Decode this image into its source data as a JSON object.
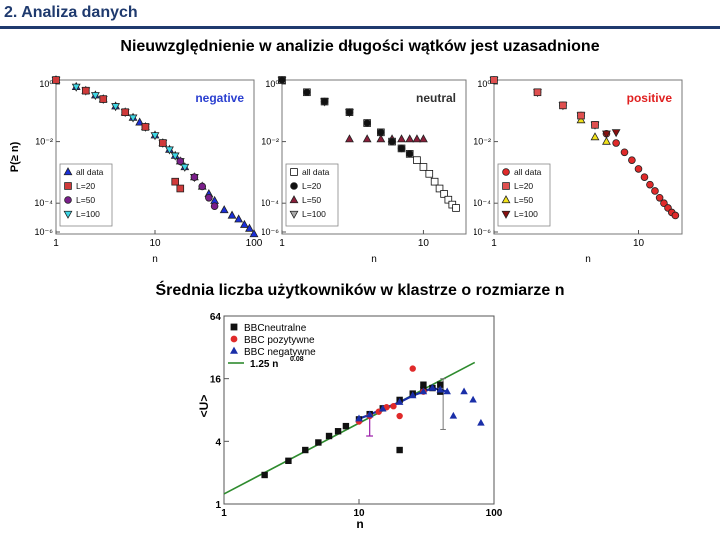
{
  "slide": {
    "title": "2. Analiza danych",
    "heading_top": "Nieuwzględnienie w analizie długości wątków jest uzasadnione",
    "heading_bottom": "Średnia liczba użytkowników w klastrze o rozmiarze n"
  },
  "chart_data": [
    {
      "type": "scatter",
      "title": "negative",
      "ylabel": "P(≥ n)",
      "xlabel": "n",
      "log_x": true,
      "log_y": true,
      "xlim": [
        1,
        100
      ],
      "ylim": [
        1e-05,
        1
      ],
      "xticks": [
        "1",
        "10",
        "100"
      ],
      "yticks": [
        "10⁰",
        "10⁻²",
        "10⁻⁴",
        "10⁻⁶"
      ],
      "title_color": "#2a3fd0",
      "legend_position": "bottom-left",
      "series": [
        {
          "name": "all data",
          "color": "#1a2fd8",
          "marker": "triangle-up",
          "x": [
            1,
            1.6,
            2,
            2.5,
            3,
            4,
            5,
            6,
            7,
            8,
            10,
            12,
            14,
            16,
            18,
            20,
            25,
            30,
            35,
            40,
            50,
            60,
            70,
            80,
            90,
            100
          ],
          "y": [
            1,
            0.6,
            0.45,
            0.32,
            0.24,
            0.14,
            0.09,
            0.06,
            0.042,
            0.03,
            0.016,
            0.009,
            0.0055,
            0.0035,
            0.0023,
            0.0015,
            0.0007,
            0.00035,
            0.0002,
            0.00012,
            6e-05,
            4e-05,
            3e-05,
            2e-05,
            1.5e-05,
            1e-05
          ]
        },
        {
          "name": "L=20",
          "color": "#d03a3a",
          "marker": "square",
          "x": [
            1,
            2,
            3,
            5,
            8,
            12,
            16,
            18
          ],
          "y": [
            1,
            0.45,
            0.24,
            0.09,
            0.03,
            0.009,
            0.0005,
            0.0003
          ]
        },
        {
          "name": "L=50",
          "color": "#7a1f8a",
          "marker": "circle",
          "x": [
            1,
            2,
            3,
            5,
            8,
            12,
            18,
            25,
            30,
            35,
            40
          ],
          "y": [
            1,
            0.45,
            0.24,
            0.09,
            0.03,
            0.009,
            0.0023,
            0.0007,
            0.00035,
            0.00015,
            8e-05
          ]
        },
        {
          "name": "L=100",
          "color": "#3fd6e6",
          "marker": "triangle-down",
          "x": [
            1,
            1.6,
            2,
            2.5,
            3,
            4,
            5,
            6,
            8,
            10,
            12,
            14,
            16,
            18,
            20,
            25
          ],
          "y": [
            1,
            0.6,
            0.45,
            0.32,
            0.24,
            0.14,
            0.09,
            0.06,
            0.03,
            0.016,
            0.009,
            0.0055,
            0.0035,
            0.0023,
            0.0015,
            0.0007
          ]
        }
      ]
    },
    {
      "type": "scatter",
      "title": "neutral",
      "xlabel": "n",
      "log_x": true,
      "log_y": true,
      "xlim": [
        1,
        20
      ],
      "ylim": [
        1e-05,
        1
      ],
      "xticks": [
        "1",
        "10"
      ],
      "yticks": [
        "10⁰",
        "10⁻²",
        "10⁻⁴",
        "10⁻⁶"
      ],
      "title_color": "#333333",
      "legend_position": "bottom-left",
      "series": [
        {
          "name": "all data",
          "color": "#ffffff",
          "marker": "square",
          "x": [
            1,
            1.5,
            2,
            3,
            4,
            5,
            6,
            7,
            8,
            9,
            10,
            11,
            12,
            13,
            14,
            15,
            16,
            17
          ],
          "y": [
            1,
            0.4,
            0.2,
            0.09,
            0.04,
            0.02,
            0.01,
            0.006,
            0.004,
            0.0025,
            0.0015,
            0.0009,
            0.0005,
            0.0003,
            0.0002,
            0.00013,
            9e-05,
            7e-05
          ]
        },
        {
          "name": "L=20",
          "color": "#111111",
          "marker": "circle",
          "x": [
            1,
            1.5,
            2,
            3,
            4,
            5,
            6,
            7,
            8
          ],
          "y": [
            1,
            0.4,
            0.2,
            0.09,
            0.04,
            0.02,
            0.01,
            0.006,
            0.004
          ]
        },
        {
          "name": "L=50",
          "color": "#8a1f3a",
          "marker": "triangle-up",
          "x": [
            3,
            4,
            5,
            6,
            7,
            8,
            9,
            10
          ],
          "y": [
            0.012,
            0.012,
            0.012,
            0.012,
            0.012,
            0.012,
            0.012,
            0.012
          ]
        },
        {
          "name": "L=100",
          "color": "#aaaaaa",
          "marker": "triangle-down",
          "x": [
            1,
            2,
            3
          ],
          "y": [
            1,
            0.2,
            0.09
          ]
        }
      ]
    },
    {
      "type": "scatter",
      "title": "positive",
      "xlabel": "n",
      "log_x": true,
      "log_y": true,
      "xlim": [
        1,
        20
      ],
      "ylim": [
        1e-05,
        1
      ],
      "xticks": [
        "1",
        "10"
      ],
      "yticks": [
        "10⁰",
        "10⁻²",
        "10⁻⁴",
        "10⁻⁶"
      ],
      "title_color": "#e02020",
      "legend_position": "bottom-left",
      "series": [
        {
          "name": "all data",
          "color": "#e02a2a",
          "marker": "circle",
          "x": [
            1,
            2,
            3,
            4,
            5,
            6,
            7,
            8,
            9,
            10,
            11,
            12,
            13,
            14,
            15,
            16,
            17,
            18
          ],
          "y": [
            1,
            0.4,
            0.15,
            0.07,
            0.035,
            0.018,
            0.009,
            0.0045,
            0.0025,
            0.0013,
            0.0007,
            0.0004,
            0.00025,
            0.00015,
            0.0001,
            7e-05,
            5e-05,
            4e-05
          ]
        },
        {
          "name": "L=20",
          "color": "#e05050",
          "marker": "square",
          "x": [
            1,
            2,
            3,
            4,
            5
          ],
          "y": [
            1,
            0.4,
            0.15,
            0.07,
            0.035
          ]
        },
        {
          "name": "L=50",
          "color": "#f2e21a",
          "marker": "triangle-up",
          "x": [
            4,
            5,
            6
          ],
          "y": [
            0.05,
            0.014,
            0.01
          ]
        },
        {
          "name": "L=100",
          "color": "#8a1010",
          "marker": "triangle-down",
          "x": [
            1,
            2,
            3,
            4,
            5,
            6,
            7
          ],
          "y": [
            1,
            0.4,
            0.15,
            0.07,
            0.035,
            0.018,
            0.02
          ]
        }
      ]
    },
    {
      "type": "scatter",
      "xlabel": "n",
      "ylabel": "<U>",
      "log_x": true,
      "log_y": true,
      "xlim": [
        1,
        100
      ],
      "ylim": [
        1,
        64
      ],
      "xticks": [
        "1",
        "10",
        "100"
      ],
      "yticks": [
        "1",
        "4",
        "16",
        "64"
      ],
      "legend_position": "top-left",
      "series": [
        {
          "name": "BBCneutralne",
          "color": "#111111",
          "marker": "square",
          "x": [
            2,
            3,
            4,
            5,
            6,
            7,
            8,
            10,
            12,
            15,
            20,
            25,
            30,
            35,
            40,
            20,
            30,
            40
          ],
          "y": [
            1.9,
            2.6,
            3.3,
            3.9,
            4.5,
            5.0,
            5.6,
            6.5,
            7.3,
            8.3,
            10,
            11.5,
            12.5,
            13,
            14,
            3.3,
            14,
            12
          ]
        },
        {
          "name": "BBC pozytywne",
          "color": "#e02a2a",
          "marker": "circle",
          "x": [
            10,
            12,
            14,
            16,
            18,
            20,
            25,
            30
          ],
          "y": [
            6.2,
            7.0,
            7.7,
            8.5,
            8.7,
            7.0,
            20,
            12
          ]
        },
        {
          "name": "BBC negatywne",
          "color": "#1a2fa8",
          "marker": "triangle-up",
          "x": [
            10,
            12,
            15,
            20,
            25,
            30,
            35,
            40,
            45,
            50,
            60,
            70,
            80
          ],
          "y": [
            6.6,
            7.2,
            8.2,
            9.5,
            11,
            12,
            13,
            12.5,
            12,
            7,
            12,
            10,
            6
          ]
        }
      ],
      "fit_line": {
        "name": "1.25 n",
        "exponent_label": "0.08",
        "color": "#2e8b2e"
      }
    }
  ]
}
